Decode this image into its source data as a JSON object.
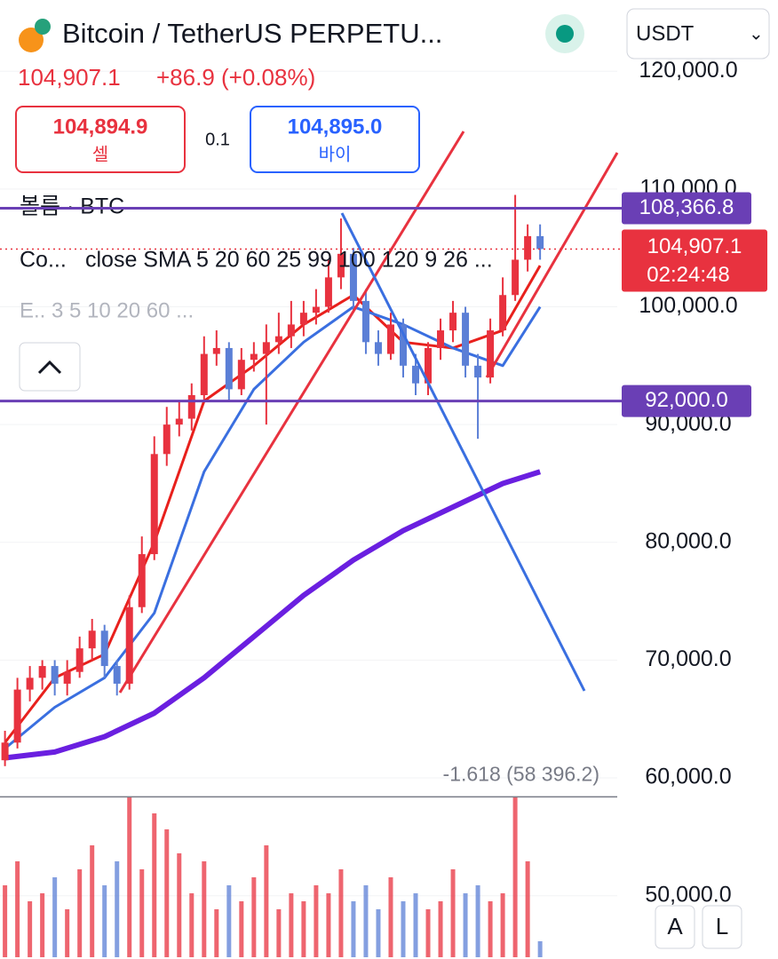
{
  "chart_data": {
    "type": "candlestick",
    "title": "Bitcoin / TetherUS PERPETU...",
    "price": "104,907.1",
    "change": "+86.9 (+0.08%)",
    "sell": {
      "price": "104,894.9",
      "label": "셀"
    },
    "spread": "0.1",
    "buy": {
      "price": "104,895.0",
      "label": "바이"
    },
    "currency": "USDT",
    "volume_label": "볼륨 · BTC",
    "indicator_name": "Co...",
    "indicator_text": "close SMA 5 20 60 25 99 100 120 9 26 ...",
    "ema_text": "E.. 3 5 10 20 60 ...",
    "buttons": [
      "A",
      "L"
    ],
    "up_color": "#e8323f",
    "down_color": "#5b7fd6",
    "x": [
      0,
      1,
      2,
      3,
      4,
      5,
      6,
      7,
      8,
      9,
      10,
      11,
      12,
      13,
      14,
      15,
      16,
      17,
      18,
      19,
      20,
      21,
      22,
      23,
      24,
      25,
      26,
      27,
      28,
      29,
      30,
      31,
      32,
      33,
      34,
      35,
      36,
      37,
      38,
      39,
      40,
      41,
      42,
      43
    ],
    "xlim": [
      -0.4,
      49.2
    ],
    "open": [
      61500,
      63000,
      67500,
      68500,
      69500,
      68000,
      69000,
      71000,
      72500,
      69500,
      68000,
      74500,
      79000,
      87500,
      90000,
      90500,
      92500,
      96000,
      96500,
      93000,
      95500,
      96000,
      97000,
      97500,
      98500,
      99500,
      100000,
      102500,
      104500,
      100500,
      97000,
      96000,
      98500,
      95000,
      93500,
      96500,
      98000,
      99500,
      95000,
      94000,
      98000,
      101000,
      104000,
      106000
    ],
    "high": [
      64000,
      68500,
      69500,
      70000,
      70000,
      70000,
      72000,
      73500,
      73000,
      70000,
      75500,
      80500,
      89000,
      91500,
      92000,
      93500,
      97500,
      98000,
      97000,
      96500,
      97000,
      98500,
      99500,
      100500,
      100500,
      101500,
      104000,
      107500,
      105000,
      101500,
      98000,
      99500,
      99000,
      96000,
      97000,
      99000,
      100500,
      100000,
      96000,
      99000,
      102500,
      109500,
      107000,
      107000
    ],
    "low": [
      61000,
      62500,
      66500,
      67500,
      67000,
      67000,
      68500,
      70000,
      68500,
      67000,
      67500,
      74000,
      78500,
      86500,
      89000,
      89500,
      92000,
      95000,
      92000,
      92500,
      94500,
      90000,
      96000,
      96500,
      97500,
      98500,
      99500,
      101500,
      99500,
      96000,
      95000,
      95500,
      94000,
      92500,
      92500,
      95500,
      97000,
      94000,
      88800,
      93500,
      97500,
      100500,
      103000,
      104000
    ],
    "close": [
      63000,
      67500,
      68500,
      69500,
      68000,
      69000,
      71000,
      72500,
      69500,
      68000,
      74500,
      79000,
      87500,
      90000,
      90500,
      92500,
      96000,
      96500,
      93000,
      95500,
      96000,
      97000,
      97500,
      98500,
      99500,
      100000,
      102500,
      104500,
      100500,
      97000,
      96000,
      98500,
      95000,
      93500,
      96500,
      98000,
      99500,
      95000,
      94000,
      98000,
      101000,
      104000,
      106000,
      104907.1
    ],
    "volume": [
      45,
      60,
      35,
      40,
      50,
      30,
      55,
      70,
      45,
      60,
      100,
      55,
      90,
      80,
      65,
      40,
      60,
      30,
      45,
      35,
      50,
      70,
      30,
      40,
      35,
      45,
      40,
      55,
      35,
      45,
      30,
      50,
      35,
      40,
      30,
      35,
      55,
      40,
      45,
      35,
      40,
      100,
      60,
      10
    ],
    "vlim": [
      0,
      100
    ],
    "lines": [
      {
        "color": "#e8201c",
        "x": [
          0,
          4,
          8,
          12,
          16,
          20,
          24,
          28,
          32,
          36,
          40,
          43
        ],
        "values": [
          63000,
          68500,
          70500,
          80000,
          92000,
          95000,
          98500,
          101000,
          97000,
          96500,
          98000,
          103500
        ]
      },
      {
        "color": "#3a6fe0",
        "x": [
          0,
          4,
          8,
          12,
          16,
          20,
          24,
          28,
          32,
          36,
          40,
          43
        ],
        "values": [
          62500,
          66000,
          68500,
          74000,
          86000,
          93000,
          97000,
          100000,
          98500,
          96500,
          95000,
          100000
        ]
      },
      {
        "color": "#6a1fe0",
        "x": [
          0,
          4,
          8,
          12,
          16,
          20,
          24,
          28,
          32,
          36,
          40,
          43
        ],
        "values": [
          61700,
          62200,
          63500,
          65500,
          68500,
          72000,
          75500,
          78500,
          81000,
          83000,
          85000,
          86000
        ]
      }
    ],
    "ylim": [
      49600,
      121000
    ],
    "yticks": [
      {
        "value": 120000,
        "label": "120,000.0"
      },
      {
        "value": 110000,
        "label": "110,000.0"
      },
      {
        "value": 100000,
        "label": "100,000.0"
      },
      {
        "value": 90000,
        "label": "90,000.0"
      },
      {
        "value": 80000,
        "label": "80,000.0"
      },
      {
        "value": 70000,
        "label": "70,000.0"
      },
      {
        "value": 60000,
        "label": "60,000.0"
      },
      {
        "value": 50000,
        "label": "50,000.0"
      }
    ],
    "levels": [
      {
        "value": 108366.8,
        "label": "108,366.8"
      },
      {
        "value": 92000,
        "label": "92,000.0"
      }
    ],
    "last_price": {
      "value": 104907.1,
      "label": "104,907.1",
      "countdown": "02:24:48"
    },
    "fib": {
      "value": 58396.2,
      "label": "-1.618 (58 396.2)"
    }
  }
}
